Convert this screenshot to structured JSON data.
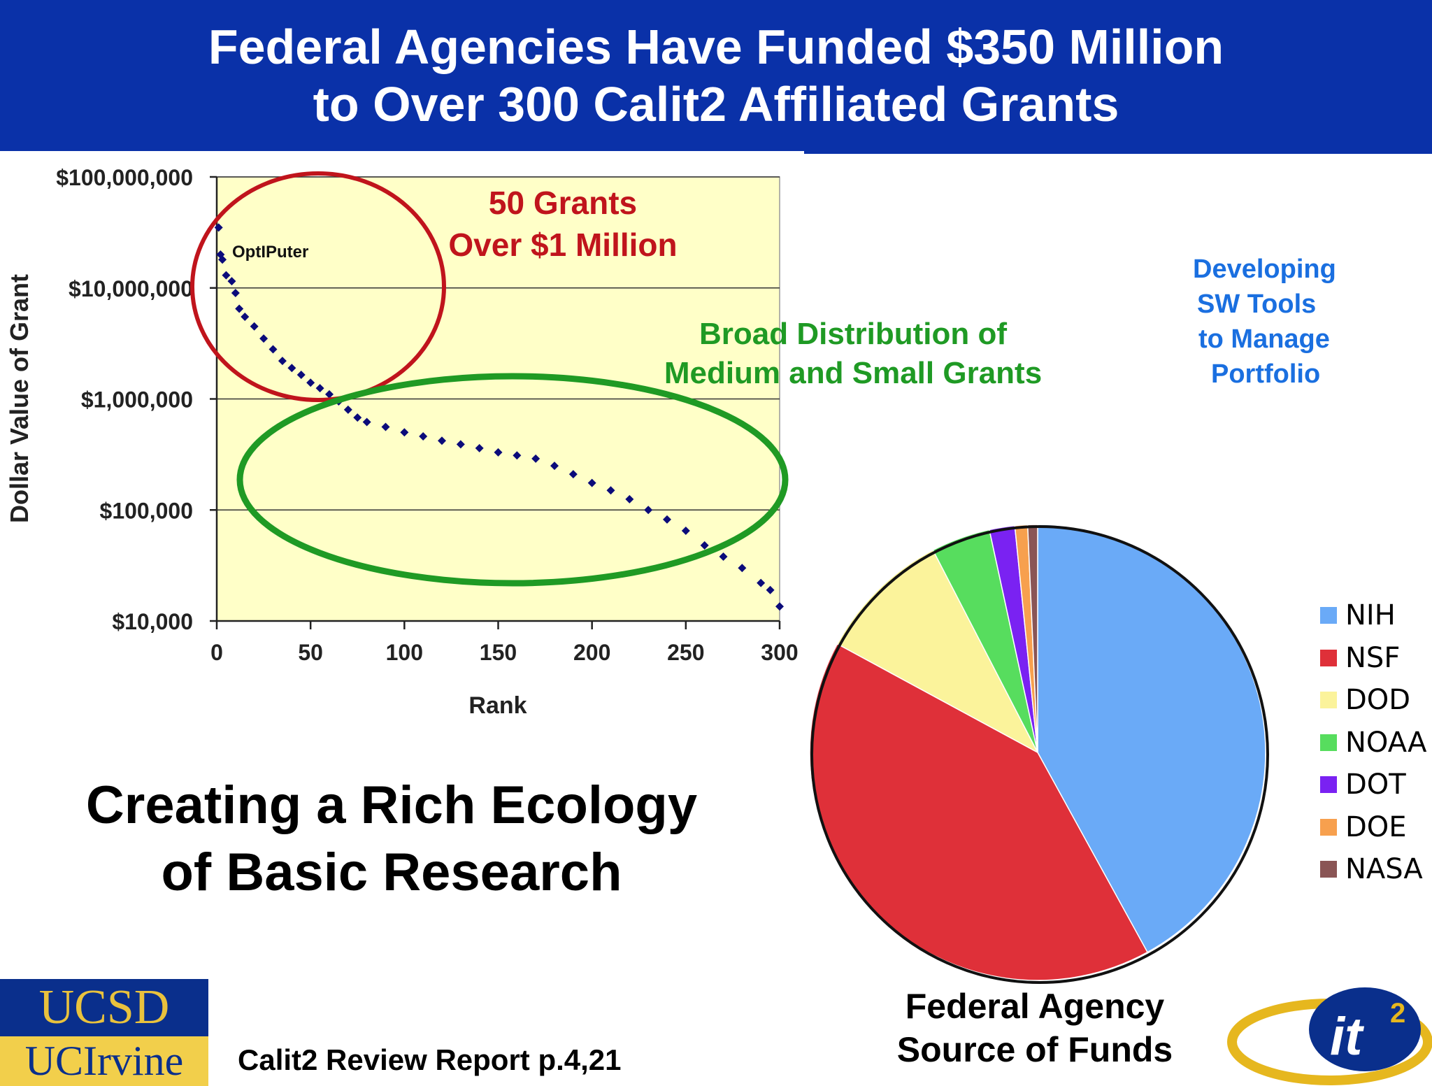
{
  "header": {
    "title_line1": "Federal Agencies Have Funded $350 Million",
    "title_line2": "to Over 300 Calit2 Affiliated Grants"
  },
  "annotations": {
    "big_grants": [
      "50 Grants",
      "Over $1 Million"
    ],
    "medium_small": [
      "Broad Distribution of",
      "Medium and Small Grants"
    ],
    "sw_tools": [
      "Developing",
      "SW Tools",
      "to Manage",
      "Portfolio"
    ],
    "optiputer": "OptIPuter"
  },
  "ecology_caption": [
    "Creating a Rich Ecology",
    "of Basic Research"
  ],
  "pie_caption": [
    "Federal Agency",
    "Source of Funds"
  ],
  "report_ref": "Calit2 Review Report p.4,21",
  "logos": {
    "ucsd": "UCSD",
    "uci": "UCIrvine",
    "it2": "it2"
  },
  "colors": {
    "banner": "#0a31a8",
    "plot_bg": "#ffffc8",
    "points": "#0b0b7a",
    "red_ellipse": "#c0141c",
    "green_ellipse": "#1f9a24"
  },
  "chart_data": [
    {
      "type": "scatter",
      "title": "",
      "xlabel": "Rank",
      "ylabel": "Dollar Value of Grant",
      "yscale": "log",
      "xlim": [
        0,
        300
      ],
      "ylim": [
        10000,
        100000000
      ],
      "x_ticks": [
        "0",
        "50",
        "100",
        "150",
        "200",
        "250",
        "300"
      ],
      "y_ticks": [
        "$10,000",
        "$100,000",
        "$1,000,000",
        "$10,000,000",
        "$100,000,000"
      ],
      "grid": "horizontal",
      "series": [
        {
          "x": [
            1,
            2,
            3,
            5,
            8,
            10,
            12,
            15,
            20,
            25,
            30,
            35,
            40,
            45,
            50,
            55,
            60,
            65,
            70,
            75,
            80,
            90,
            100,
            110,
            120,
            130,
            140,
            150,
            160,
            170,
            180,
            190,
            200,
            210,
            220,
            230,
            240,
            250,
            260,
            270,
            280,
            290,
            295,
            300
          ],
          "y": [
            35000000,
            20000000,
            18000000,
            13000000,
            11500000,
            9000000,
            6500000,
            5500000,
            4500000,
            3500000,
            2800000,
            2200000,
            1900000,
            1650000,
            1400000,
            1250000,
            1100000,
            950000,
            800000,
            680000,
            620000,
            560000,
            500000,
            460000,
            420000,
            390000,
            360000,
            330000,
            310000,
            290000,
            250000,
            210000,
            175000,
            150000,
            125000,
            100000,
            82000,
            65000,
            48000,
            38000,
            30000,
            22000,
            19000,
            13500
          ]
        }
      ]
    },
    {
      "type": "pie",
      "title": "",
      "slices": [
        {
          "label": "NIH",
          "value": 42,
          "color": "#6aaaf7"
        },
        {
          "label": "NSF",
          "value": 40.9,
          "color": "#df3039"
        },
        {
          "label": "DOD",
          "value": 9.5,
          "color": "#fbf39b"
        },
        {
          "label": "NOAA",
          "value": 4.2,
          "color": "#57dd5e"
        },
        {
          "label": "DOT",
          "value": 1.8,
          "color": "#7a22f2"
        },
        {
          "label": "DOE",
          "value": 0.9,
          "color": "#f7a04e"
        },
        {
          "label": "NASA",
          "value": 0.7,
          "color": "#8a5555"
        }
      ],
      "legend": "right"
    }
  ]
}
